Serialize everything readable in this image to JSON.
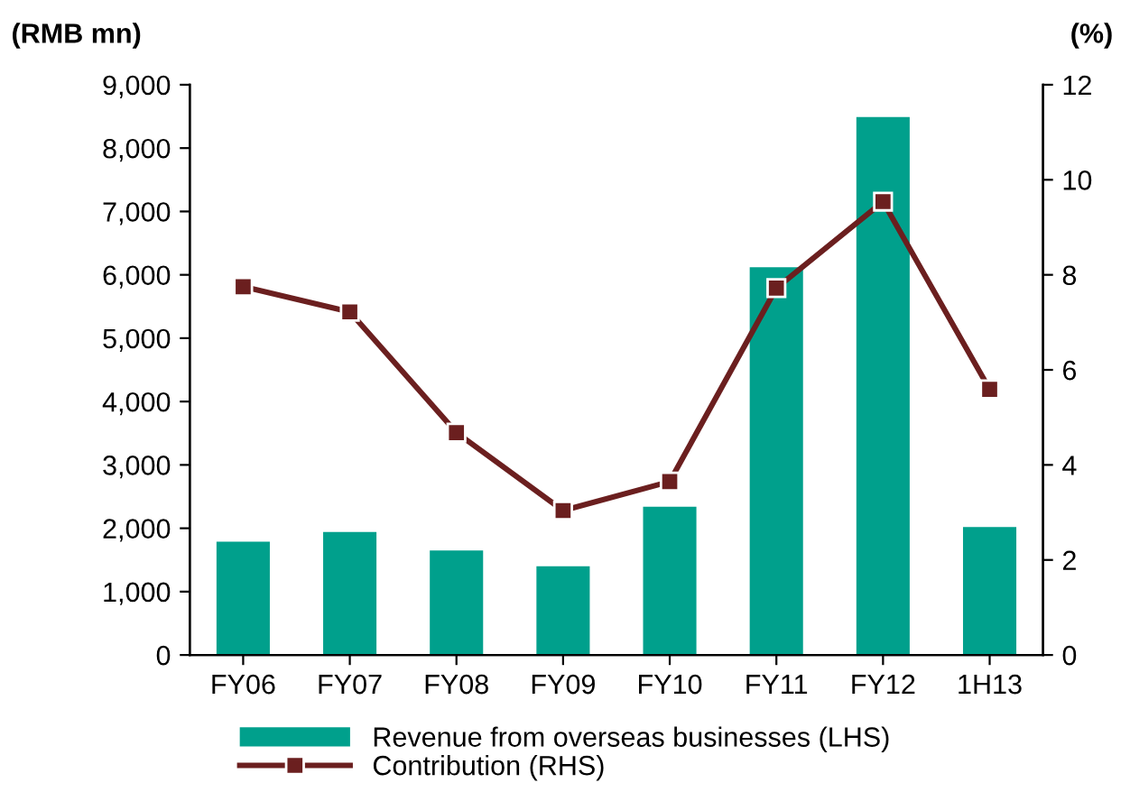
{
  "chart_data": {
    "type": "bar",
    "ylabel": "(RMB mn)",
    "y2label": "(%)",
    "categories": [
      "FY06",
      "FY07",
      "FY08",
      "FY09",
      "FY10",
      "FY11",
      "FY12",
      "1H13"
    ],
    "series": [
      {
        "name": "Revenue from overseas businesses (LHS)",
        "color": "#00a08c",
        "values": [
          1790,
          1940,
          1650,
          1400,
          2340,
          6120,
          8490,
          2020
        ]
      },
      {
        "name": "Contribution (RHS)",
        "type": "line",
        "axis": "y2",
        "color": "#6b1f1f",
        "marker": "square",
        "values": [
          7.75,
          7.22,
          4.68,
          3.04,
          3.65,
          7.72,
          9.54,
          5.59
        ]
      }
    ],
    "ylim": [
      0,
      9000
    ],
    "yticks": [
      {
        "value": 0,
        "label": "0"
      },
      {
        "value": 1000,
        "label": "1,000"
      },
      {
        "value": 2000,
        "label": "2,000"
      },
      {
        "value": 3000,
        "label": "3,000"
      },
      {
        "value": 4000,
        "label": "4,000"
      },
      {
        "value": 5000,
        "label": "5,000"
      },
      {
        "value": 6000,
        "label": "6,000"
      },
      {
        "value": 7000,
        "label": "7,000"
      },
      {
        "value": 8000,
        "label": "8,000"
      },
      {
        "value": 9000,
        "label": "9,000"
      }
    ],
    "y2lim": [
      0,
      12
    ],
    "y2ticks": [
      0,
      2,
      4,
      6,
      8,
      10,
      12
    ],
    "grid": false,
    "legend": "bottom"
  }
}
